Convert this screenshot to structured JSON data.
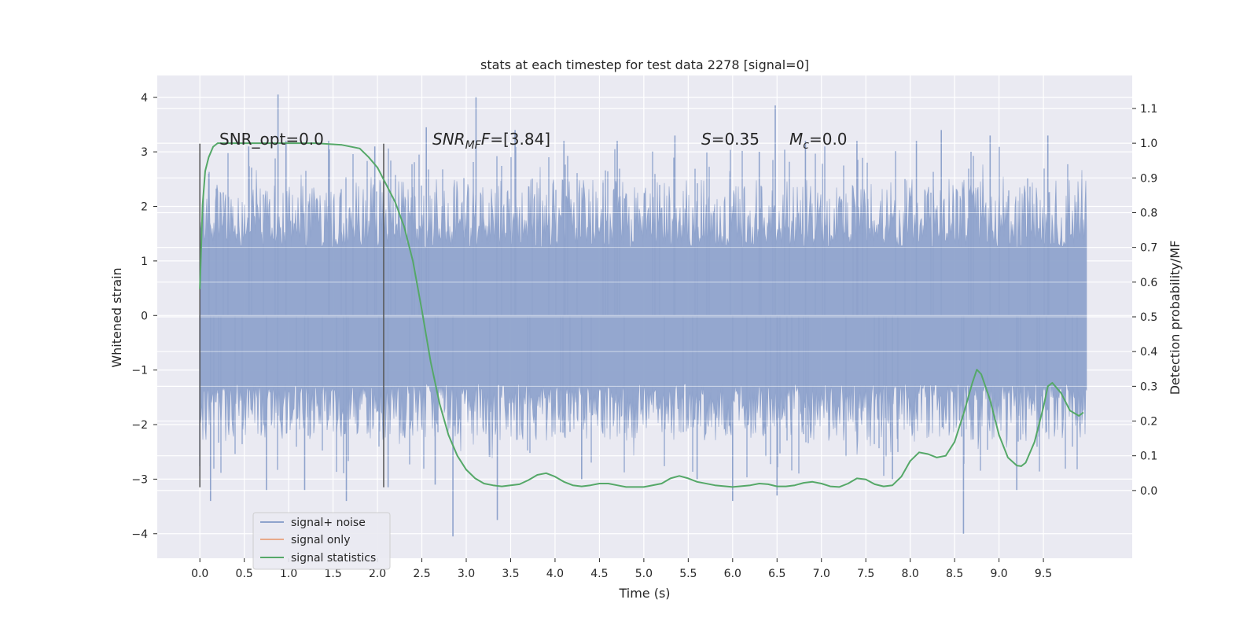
{
  "chart_data": {
    "type": "line",
    "title": "stats at each timestep for test data 2278 [signal=0]",
    "xlabel": "Time (s)",
    "ylabel": "Whitened strain",
    "y2label": "Detection probability/MF",
    "xlim": [
      -0.48,
      10.5
    ],
    "ylim": [
      -4.45,
      4.4
    ],
    "y2lim": [
      -0.195,
      1.195
    ],
    "x_ticks": [
      "0.0",
      "0.5",
      "1.0",
      "1.5",
      "2.0",
      "2.5",
      "3.0",
      "3.5",
      "4.0",
      "4.5",
      "5.0",
      "5.5",
      "6.0",
      "6.5",
      "7.0",
      "7.5",
      "8.0",
      "8.5",
      "9.0",
      "9.5"
    ],
    "y_ticks": [
      "4",
      "3",
      "2",
      "1",
      "0",
      "−1",
      "−2",
      "−3",
      "−4"
    ],
    "y2_ticks": [
      "1.1",
      "1.0",
      "0.9",
      "0.8",
      "0.7",
      "0.6",
      "0.5",
      "0.4",
      "0.3",
      "0.2",
      "0.1",
      "0.0"
    ],
    "grid": true,
    "legend_position": "lower-left",
    "annotations": {
      "snr_opt": "SNR_opt=0.0",
      "snr_mf_var": "SNR",
      "snr_mf_sub": "MF",
      "snr_mf_rest": "=[3.84]",
      "s_var": "S",
      "s_rest": "=0.35",
      "mc_var": "M",
      "mc_sub": "c",
      "mc_rest": "=0.0"
    },
    "vertical_markers": [
      0.0,
      2.07
    ],
    "series": [
      {
        "name": "signal+ noise",
        "color": "#8fa3cc",
        "axis": "left",
        "x_range": [
          0.0,
          9.99
        ],
        "envelope_core": [
          -1.25,
          1.25
        ],
        "envelope_typical": [
          -2.3,
          2.5
        ],
        "peaks": [
          [
            0.1,
            2.6
          ],
          [
            0.12,
            -3.4
          ],
          [
            0.55,
            3.1
          ],
          [
            0.75,
            -3.2
          ],
          [
            0.88,
            4.05
          ],
          [
            0.97,
            3.2
          ],
          [
            1.18,
            -3.2
          ],
          [
            1.45,
            3.2
          ],
          [
            1.65,
            -3.4
          ],
          [
            1.97,
            3.1
          ],
          [
            2.12,
            -3.15
          ],
          [
            2.55,
            3.45
          ],
          [
            2.65,
            -3.1
          ],
          [
            2.85,
            -4.05
          ],
          [
            3.11,
            4.0
          ],
          [
            3.35,
            -3.75
          ],
          [
            3.55,
            3.4
          ],
          [
            4.1,
            3.2
          ],
          [
            4.3,
            -3.0
          ],
          [
            4.7,
            3.2
          ],
          [
            5.35,
            3.3
          ],
          [
            5.6,
            -3.0
          ],
          [
            6.0,
            -3.4
          ],
          [
            6.3,
            3.0
          ],
          [
            6.48,
            3.85
          ],
          [
            6.5,
            -3.3
          ],
          [
            6.82,
            3.2
          ],
          [
            7.4,
            3.2
          ],
          [
            7.8,
            -3.0
          ],
          [
            8.07,
            3.2
          ],
          [
            8.35,
            3.4
          ],
          [
            8.6,
            -4.0
          ],
          [
            8.9,
            3.3
          ],
          [
            9.2,
            -3.2
          ],
          [
            9.55,
            3.3
          ]
        ]
      },
      {
        "name": "signal only",
        "color": "#e8a98a",
        "axis": "left",
        "x": [],
        "y": []
      },
      {
        "name": "signal statistics",
        "color": "#55a868",
        "axis": "right",
        "x": [
          0.0,
          0.03,
          0.06,
          0.1,
          0.15,
          0.2,
          0.3,
          0.5,
          0.8,
          1.0,
          1.3,
          1.6,
          1.8,
          1.9,
          2.0,
          2.1,
          2.2,
          2.3,
          2.4,
          2.5,
          2.6,
          2.65,
          2.7,
          2.8,
          2.9,
          3.0,
          3.1,
          3.2,
          3.3,
          3.4,
          3.6,
          3.7,
          3.8,
          3.9,
          4.0,
          4.1,
          4.2,
          4.3,
          4.4,
          4.5,
          4.6,
          4.7,
          4.8,
          5.0,
          5.2,
          5.3,
          5.4,
          5.5,
          5.6,
          5.8,
          6.0,
          6.2,
          6.3,
          6.4,
          6.5,
          6.6,
          6.7,
          6.8,
          6.9,
          7.0,
          7.1,
          7.2,
          7.3,
          7.4,
          7.5,
          7.6,
          7.7,
          7.8,
          7.9,
          8.0,
          8.1,
          8.2,
          8.3,
          8.4,
          8.5,
          8.6,
          8.7,
          8.75,
          8.8,
          8.9,
          9.0,
          9.1,
          9.2,
          9.25,
          9.3,
          9.4,
          9.5,
          9.55,
          9.6,
          9.7,
          9.8,
          9.9,
          9.95
        ],
        "y": [
          0.58,
          0.82,
          0.92,
          0.96,
          0.99,
          1.0,
          1.0,
          1.0,
          1.0,
          1.0,
          1.0,
          0.995,
          0.985,
          0.96,
          0.93,
          0.88,
          0.83,
          0.76,
          0.66,
          0.52,
          0.37,
          0.31,
          0.25,
          0.16,
          0.1,
          0.06,
          0.035,
          0.02,
          0.015,
          0.012,
          0.018,
          0.03,
          0.045,
          0.05,
          0.04,
          0.025,
          0.015,
          0.012,
          0.015,
          0.02,
          0.02,
          0.015,
          0.01,
          0.01,
          0.02,
          0.035,
          0.042,
          0.035,
          0.025,
          0.015,
          0.01,
          0.015,
          0.02,
          0.018,
          0.012,
          0.012,
          0.015,
          0.022,
          0.025,
          0.02,
          0.012,
          0.01,
          0.02,
          0.035,
          0.032,
          0.018,
          0.012,
          0.015,
          0.04,
          0.085,
          0.11,
          0.105,
          0.095,
          0.1,
          0.14,
          0.22,
          0.31,
          0.348,
          0.335,
          0.26,
          0.16,
          0.095,
          0.072,
          0.07,
          0.08,
          0.14,
          0.24,
          0.3,
          0.31,
          0.28,
          0.23,
          0.215,
          0.225
        ]
      }
    ]
  }
}
